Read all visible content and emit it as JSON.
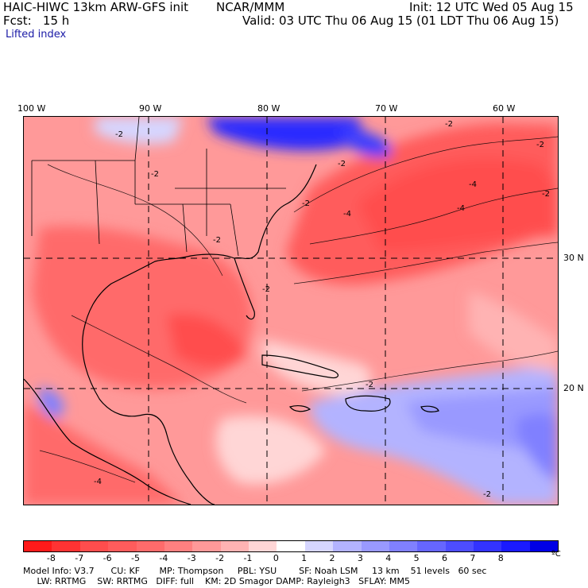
{
  "header": {
    "model": "HAIC-HIWC 13km ARW-GFS init",
    "org": "NCAR/MMM",
    "init": "Init: 12 UTC Wed 05 Aug 15",
    "fcst": "Fcst:   15 h",
    "valid": "Valid: 03 UTC Thu 06 Aug 15 (01 LDT Thu 06 Aug 15)",
    "field": "Lifted index"
  },
  "map": {
    "lon_labels": [
      "100 W",
      "90 W",
      "80 W",
      "70 W",
      "60 W"
    ],
    "lat_labels": [
      "30 N",
      "20 N"
    ],
    "contour_labels": [
      "-2",
      "-2",
      "-2",
      "-4",
      "-4",
      "-2",
      "-2",
      "-2",
      "-4",
      "-2",
      "-4",
      "-2",
      "-2",
      "-2",
      "-2"
    ]
  },
  "colorbar": {
    "ticks": [
      "-8",
      "-7",
      "-6",
      "-5",
      "-4",
      "-3",
      "-2",
      "-1",
      "0",
      "1",
      "2",
      "3",
      "4",
      "5",
      "6",
      "7",
      "8"
    ],
    "unit": "ºC",
    "colors": [
      "#ff1a1a",
      "#ff3333",
      "#ff4d4d",
      "#ff5c5c",
      "#ff6b6b",
      "#ff8080",
      "#ff9999",
      "#ffb3b3",
      "#ffd6d6",
      "#ffffff",
      "#d6d6ff",
      "#b3b3ff",
      "#9999ff",
      "#8080ff",
      "#6666ff",
      "#4d4dff",
      "#3333ff",
      "#1a1aff",
      "#0000e6"
    ]
  },
  "footer": {
    "line1": "Model Info: V3.7      CU: KF       MP: Thompson     PBL: YSU        SF: Noah LSM     13 km    51 levels   60 sec",
    "line2": "     LW: RRTMG    SW: RRTMG   DIFF: full    KM: 2D Smagor DAMP: Rayleigh3   SFLAY: MM5"
  }
}
